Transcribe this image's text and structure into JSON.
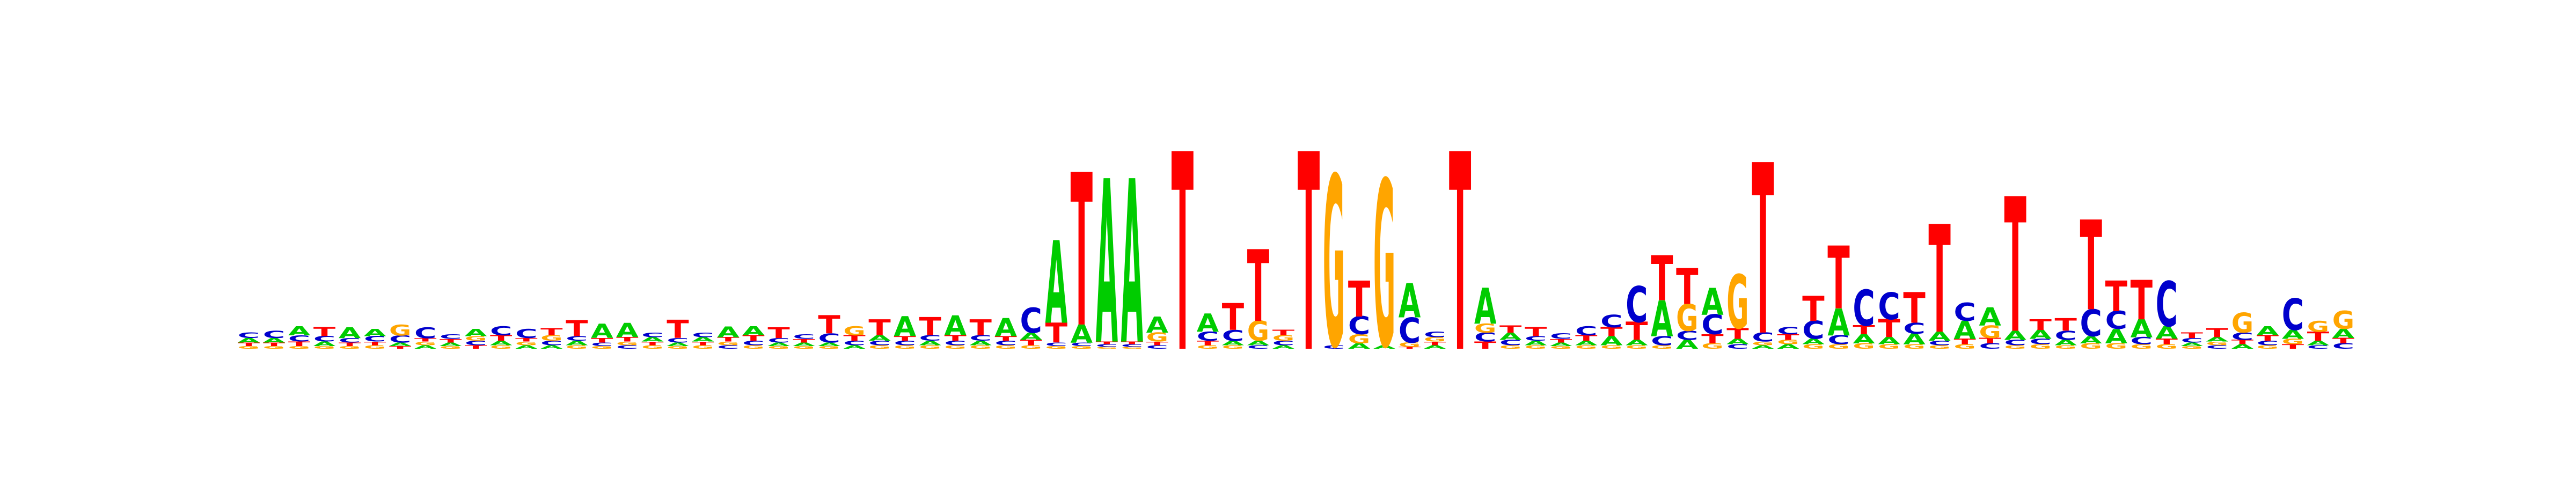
{
  "chart_data": {
    "type": "sequence-logo",
    "alphabet": [
      "A",
      "C",
      "G",
      "T"
    ],
    "colors": {
      "A": "#00cc00",
      "C": "#0000cc",
      "G": "#ffa500",
      "T": "#ff0000"
    },
    "letter_values": {
      "comment_units": "relative letter heights per position (bits)",
      "positions": [
        {
          "A": 0.05,
          "C": 0.06,
          "G": 0.03,
          "T": 0.04
        },
        {
          "A": 0.05,
          "C": 0.08,
          "G": 0.03,
          "T": 0.04
        },
        {
          "A": 0.1,
          "C": 0.07,
          "G": 0.03,
          "T": 0.05
        },
        {
          "A": 0.05,
          "C": 0.06,
          "G": 0.03,
          "T": 0.1
        },
        {
          "A": 0.12,
          "C": 0.05,
          "G": 0.03,
          "T": 0.04
        },
        {
          "A": 0.08,
          "C": 0.06,
          "G": 0.04,
          "T": 0.04
        },
        {
          "A": 0.04,
          "C": 0.08,
          "G": 0.12,
          "T": 0.03
        },
        {
          "A": 0.04,
          "C": 0.12,
          "G": 0.04,
          "T": 0.04
        },
        {
          "A": 0.04,
          "C": 0.05,
          "G": 0.03,
          "T": 0.04
        },
        {
          "A": 0.08,
          "C": 0.05,
          "G": 0.05,
          "T": 0.04
        },
        {
          "A": 0.05,
          "C": 0.1,
          "G": 0.04,
          "T": 0.06
        },
        {
          "A": 0.04,
          "C": 0.1,
          "G": 0.04,
          "T": 0.04
        },
        {
          "A": 0.04,
          "C": 0.05,
          "G": 0.06,
          "T": 0.08
        },
        {
          "A": 0.05,
          "C": 0.05,
          "G": 0.04,
          "T": 0.18
        },
        {
          "A": 0.16,
          "C": 0.04,
          "G": 0.03,
          "T": 0.05
        },
        {
          "A": 0.16,
          "C": 0.04,
          "G": 0.04,
          "T": 0.05
        },
        {
          "A": 0.05,
          "C": 0.05,
          "G": 0.04,
          "T": 0.04
        },
        {
          "A": 0.04,
          "C": 0.05,
          "G": 0.03,
          "T": 0.2
        },
        {
          "A": 0.05,
          "C": 0.05,
          "G": 0.04,
          "T": 0.04
        },
        {
          "A": 0.12,
          "C": 0.04,
          "G": 0.04,
          "T": 0.05
        },
        {
          "A": 0.1,
          "C": 0.05,
          "G": 0.04,
          "T": 0.06
        },
        {
          "A": 0.04,
          "C": 0.05,
          "G": 0.03,
          "T": 0.12
        },
        {
          "A": 0.04,
          "C": 0.05,
          "G": 0.03,
          "T": 0.04
        },
        {
          "A": 0.04,
          "C": 0.1,
          "G": 0.03,
          "T": 0.2
        },
        {
          "A": 0.04,
          "C": 0.05,
          "G": 0.1,
          "T": 0.06
        },
        {
          "A": 0.06,
          "C": 0.05,
          "G": 0.04,
          "T": 0.18
        },
        {
          "A": 0.22,
          "C": 0.05,
          "G": 0.04,
          "T": 0.05
        },
        {
          "A": 0.05,
          "C": 0.06,
          "G": 0.04,
          "T": 0.2
        },
        {
          "A": 0.22,
          "C": 0.05,
          "G": 0.04,
          "T": 0.06
        },
        {
          "A": 0.05,
          "C": 0.06,
          "G": 0.04,
          "T": 0.18
        },
        {
          "A": 0.2,
          "C": 0.05,
          "G": 0.04,
          "T": 0.05
        },
        {
          "A": 0.08,
          "C": 0.28,
          "G": 0.04,
          "T": 0.06
        },
        {
          "A": 0.92,
          "C": 0.04,
          "G": 0.03,
          "T": 0.22
        },
        {
          "A": 0.2,
          "C": 0.04,
          "G": 0.03,
          "T": 1.7
        },
        {
          "A": 1.82,
          "C": 0.03,
          "G": 0.02,
          "T": 0.03
        },
        {
          "A": 1.82,
          "C": 0.03,
          "G": 0.02,
          "T": 0.03
        },
        {
          "A": 0.18,
          "C": 0.04,
          "G": 0.1,
          "T": 0.04
        },
        {
          "A": 0.0,
          "C": 0.0,
          "G": 0.0,
          "T": 2.2
        },
        {
          "A": 0.2,
          "C": 0.1,
          "G": 0.04,
          "T": 0.05
        },
        {
          "A": 0.05,
          "C": 0.12,
          "G": 0.04,
          "T": 0.3
        },
        {
          "A": 0.05,
          "C": 0.04,
          "G": 0.22,
          "T": 0.8
        },
        {
          "A": 0.04,
          "C": 0.05,
          "G": 0.06,
          "T": 0.06
        },
        {
          "A": 0.0,
          "C": 0.0,
          "G": 0.0,
          "T": 2.2
        },
        {
          "A": 0.0,
          "C": 0.04,
          "G": 1.9,
          "T": 0.0
        },
        {
          "A": 0.06,
          "C": 0.2,
          "G": 0.1,
          "T": 0.4
        },
        {
          "A": 0.04,
          "C": 0.0,
          "G": 1.85,
          "T": 0.0
        },
        {
          "A": 0.38,
          "C": 0.28,
          "G": 0.05,
          "T": 0.02
        },
        {
          "A": 0.04,
          "C": 0.06,
          "G": 0.05,
          "T": 0.04
        },
        {
          "A": 0.0,
          "C": 0.0,
          "G": 0.0,
          "T": 2.2
        },
        {
          "A": 0.4,
          "C": 0.1,
          "G": 0.1,
          "T": 0.08
        },
        {
          "A": 0.08,
          "C": 0.06,
          "G": 0.04,
          "T": 0.08
        },
        {
          "A": 0.05,
          "C": 0.05,
          "G": 0.04,
          "T": 0.1
        },
        {
          "A": 0.04,
          "C": 0.06,
          "G": 0.03,
          "T": 0.04
        },
        {
          "A": 0.05,
          "C": 0.1,
          "G": 0.04,
          "T": 0.06
        },
        {
          "A": 0.1,
          "C": 0.14,
          "G": 0.04,
          "T": 0.1
        },
        {
          "A": 0.06,
          "C": 0.4,
          "G": 0.04,
          "T": 0.2
        },
        {
          "A": 0.4,
          "C": 0.1,
          "G": 0.04,
          "T": 0.5
        },
        {
          "A": 0.1,
          "C": 0.1,
          "G": 0.3,
          "T": 0.4
        },
        {
          "A": 0.3,
          "C": 0.22,
          "G": 0.06,
          "T": 0.1
        },
        {
          "A": 0.06,
          "C": 0.05,
          "G": 0.6,
          "T": 0.12
        },
        {
          "A": 0.04,
          "C": 0.1,
          "G": 0.04,
          "T": 1.9
        },
        {
          "A": 0.05,
          "C": 0.08,
          "G": 0.05,
          "T": 0.06
        },
        {
          "A": 0.06,
          "C": 0.2,
          "G": 0.05,
          "T": 0.28
        },
        {
          "A": 0.3,
          "C": 0.1,
          "G": 0.05,
          "T": 0.7
        },
        {
          "A": 0.1,
          "C": 0.4,
          "G": 0.06,
          "T": 0.1
        },
        {
          "A": 0.08,
          "C": 0.3,
          "G": 0.05,
          "T": 0.2
        },
        {
          "A": 0.12,
          "C": 0.12,
          "G": 0.05,
          "T": 0.34
        },
        {
          "A": 0.1,
          "C": 0.05,
          "G": 0.04,
          "T": 1.2
        },
        {
          "A": 0.2,
          "C": 0.2,
          "G": 0.05,
          "T": 0.06
        },
        {
          "A": 0.2,
          "C": 0.06,
          "G": 0.14,
          "T": 0.06
        },
        {
          "A": 0.1,
          "C": 0.06,
          "G": 0.04,
          "T": 1.5
        },
        {
          "A": 0.1,
          "C": 0.06,
          "G": 0.05,
          "T": 0.12
        },
        {
          "A": 0.06,
          "C": 0.1,
          "G": 0.04,
          "T": 0.14
        },
        {
          "A": 0.08,
          "C": 0.3,
          "G": 0.06,
          "T": 1.0
        },
        {
          "A": 0.16,
          "C": 0.2,
          "G": 0.06,
          "T": 0.34
        },
        {
          "A": 0.2,
          "C": 0.08,
          "G": 0.05,
          "T": 0.44
        },
        {
          "A": 0.14,
          "C": 0.5,
          "G": 0.05,
          "T": 0.06
        },
        {
          "A": 0.04,
          "C": 0.05,
          "G": 0.03,
          "T": 0.06
        },
        {
          "A": 0.05,
          "C": 0.04,
          "G": 0.04,
          "T": 0.1
        },
        {
          "A": 0.05,
          "C": 0.08,
          "G": 0.22,
          "T": 0.05
        },
        {
          "A": 0.1,
          "C": 0.05,
          "G": 0.04,
          "T": 0.06
        },
        {
          "A": 0.1,
          "C": 0.35,
          "G": 0.06,
          "T": 0.05
        },
        {
          "A": 0.05,
          "C": 0.04,
          "G": 0.12,
          "T": 0.1
        },
        {
          "A": 0.1,
          "C": 0.06,
          "G": 0.2,
          "T": 0.06
        }
      ]
    }
  }
}
